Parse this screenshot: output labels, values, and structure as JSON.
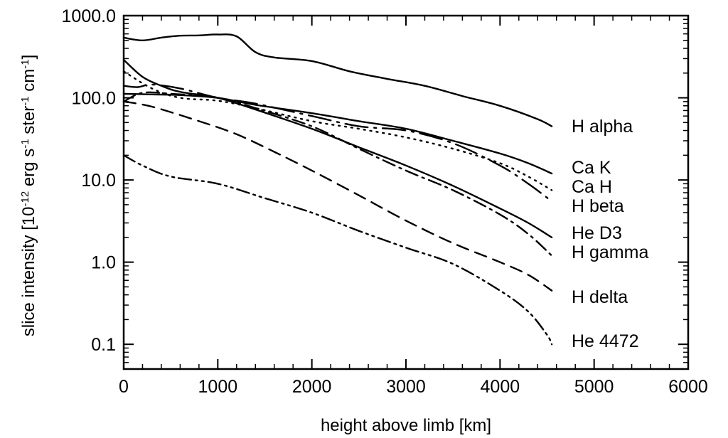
{
  "chart_data": {
    "type": "line",
    "title": "",
    "xlabel": "height above limb  [km]",
    "ylabel_parts": [
      "slice intensity  [10",
      "-12",
      " erg s",
      "-1",
      " ster",
      "-1",
      " cm",
      "-1",
      "]"
    ],
    "xlim": [
      0,
      6000
    ],
    "ylim": [
      0.05,
      1000
    ],
    "yscale": "log",
    "x_ticks": [
      "0",
      "1000",
      "2000",
      "3000",
      "4000",
      "5000",
      "6000"
    ],
    "x_tick_values": [
      0,
      1000,
      2000,
      3000,
      4000,
      5000,
      6000
    ],
    "y_ticks": [
      "0.1",
      "1.0",
      "10.0",
      "100.0",
      "1000.0"
    ],
    "y_tick_values": [
      0.1,
      1,
      10,
      100,
      1000
    ],
    "grid": false,
    "series": [
      {
        "name": "H alpha",
        "dash": "solid",
        "label_value": 45,
        "x": [
          0,
          200,
          400,
          600,
          800,
          1000,
          1200,
          1400,
          1600,
          2000,
          2400,
          2800,
          3200,
          3600,
          4000,
          4400,
          4550
        ],
        "y": [
          540,
          500,
          540,
          570,
          575,
          590,
          560,
          360,
          310,
          280,
          210,
          170,
          140,
          105,
          80,
          55,
          45
        ]
      },
      {
        "name": "Ca K",
        "dash": "solid",
        "label_value": 12,
        "x": [
          0,
          300,
          600,
          1000,
          1400,
          2000,
          2500,
          3000,
          3500,
          4000,
          4300,
          4550
        ],
        "y": [
          112,
          110,
          108,
          100,
          82,
          65,
          52,
          42,
          30,
          21,
          16,
          12
        ]
      },
      {
        "name": "Ca H",
        "dash": "dot",
        "label_value": 7.5,
        "x": [
          0,
          300,
          600,
          1000,
          1400,
          2000,
          2500,
          3000,
          3500,
          4000,
          4300,
          4550
        ],
        "y": [
          210,
          130,
          100,
          92,
          75,
          52,
          42,
          33,
          24,
          16,
          11,
          7.5
        ]
      },
      {
        "name": "H beta",
        "dash": "long-dash-dot",
        "label_value": 5.5,
        "x": [
          0,
          150,
          300,
          600,
          1000,
          1400,
          2000,
          2500,
          3000,
          3500,
          4000,
          4300,
          4550
        ],
        "y": [
          140,
          135,
          145,
          130,
          100,
          85,
          60,
          45,
          40,
          28,
          15,
          9,
          5.5
        ]
      },
      {
        "name": "He D3",
        "dash": "solid",
        "label_value": 2,
        "x": [
          0,
          200,
          400,
          600,
          1000,
          1400,
          2000,
          2500,
          3000,
          3500,
          4000,
          4300,
          4550
        ],
        "y": [
          290,
          180,
          140,
          118,
          100,
          72,
          42,
          25,
          15,
          8.5,
          4.5,
          3,
          2
        ]
      },
      {
        "name": "H gamma",
        "dash": "dash-dot",
        "label_value": 1.2,
        "x": [
          0,
          200,
          500,
          1000,
          1400,
          2000,
          2500,
          3000,
          3500,
          4000,
          4300,
          4550
        ],
        "y": [
          90,
          115,
          112,
          100,
          75,
          45,
          24,
          13,
          7.5,
          3.8,
          2.2,
          1.2
        ]
      },
      {
        "name": "H delta",
        "dash": "dash",
        "label_value": 0.45,
        "x": [
          0,
          300,
          800,
          1200,
          1600,
          2000,
          2500,
          3000,
          3500,
          4000,
          4300,
          4550
        ],
        "y": [
          90,
          78,
          52,
          36,
          22,
          13,
          6.5,
          3.2,
          1.7,
          1.0,
          0.7,
          0.45
        ]
      },
      {
        "name": "He 4472",
        "dash": "dash-dot-dot",
        "label_value": 0.1,
        "x": [
          0,
          200,
          500,
          1000,
          1500,
          2000,
          2500,
          3000,
          3500,
          4000,
          4300,
          4500,
          4550
        ],
        "y": [
          20,
          15,
          11,
          9,
          6,
          4,
          2.4,
          1.5,
          0.95,
          0.45,
          0.25,
          0.13,
          0.1
        ]
      }
    ]
  }
}
